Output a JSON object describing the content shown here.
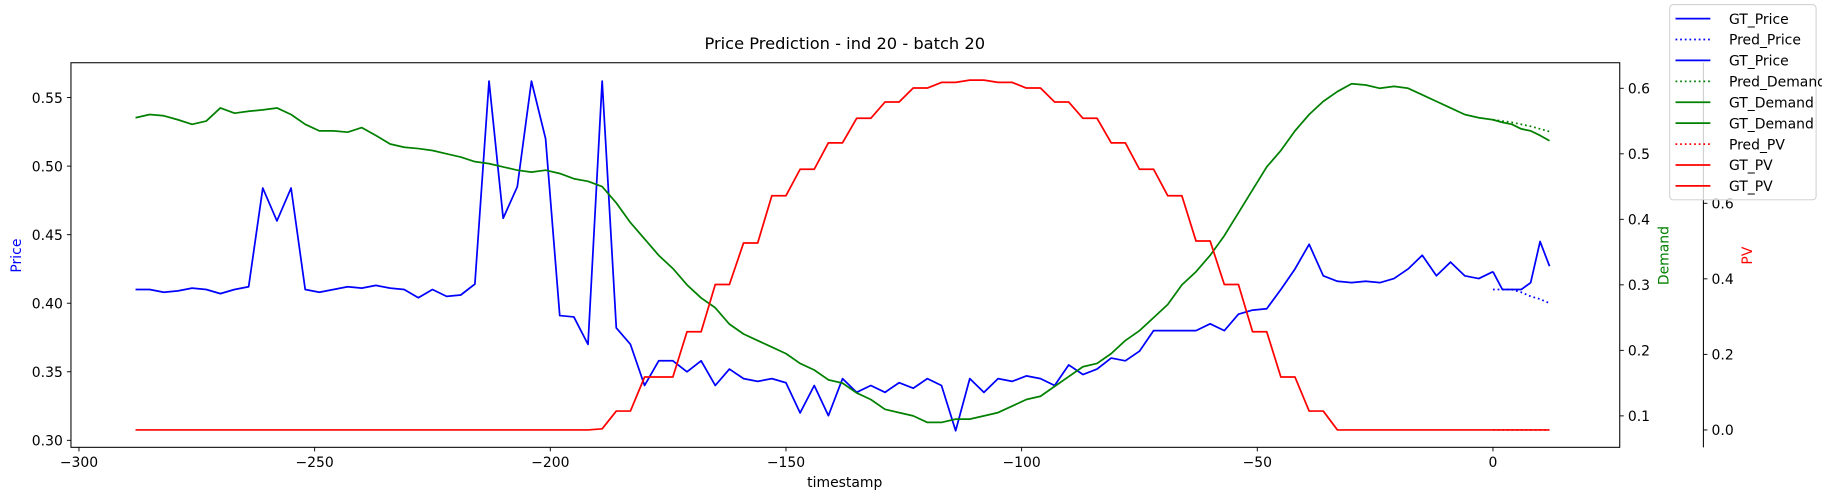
{
  "chart_data": {
    "type": "line",
    "title": "Price Prediction - ind 20 - batch 20",
    "xlabel": "timestamp",
    "ylabel": "Price",
    "y2label": "Demand",
    "y3label": "PV",
    "legend": "upper right",
    "xlim": [
      -301.7,
      26.9
    ],
    "xticks": [
      {
        "value": -300,
        "label": "−300"
      },
      {
        "value": -250,
        "label": "−250"
      },
      {
        "value": -200,
        "label": "−200"
      },
      {
        "value": -150,
        "label": "−150"
      },
      {
        "value": -100,
        "label": "−100"
      },
      {
        "value": -50,
        "label": "−50"
      },
      0
    ],
    "ylim": [
      0.2949,
      0.5754
    ],
    "yticks": [
      {
        "value": 0.3,
        "label": "0.30"
      },
      0.35,
      {
        "value": 0.4,
        "label": "0.40"
      },
      0.45,
      {
        "value": 0.5,
        "label": "0.50"
      },
      0.55
    ],
    "y2lim": [
      0.052,
      0.639
    ],
    "y2ticks": [
      0.1,
      0.2,
      0.3,
      0.4,
      0.5,
      0.6
    ],
    "y3lim": [
      -0.046,
      0.972
    ],
    "y3ticks": [
      {
        "value": 0,
        "label": "0.0"
      },
      0.2,
      0.4,
      0.6
    ],
    "x": [
      -288,
      -285,
      -282,
      -279,
      -276,
      -273,
      -270,
      -267,
      -264,
      -261,
      -258,
      -255,
      -252,
      -249,
      -246,
      -243,
      -240,
      -237,
      -234,
      -231,
      -228,
      -225,
      -222,
      -219,
      -216,
      -213,
      -210,
      -207,
      -204,
      -201,
      -198,
      -195,
      -192,
      -189,
      -186,
      -183,
      -180,
      -177,
      -174,
      -171,
      -168,
      -165,
      -162,
      -159,
      -156,
      -153,
      -150,
      -147,
      -144,
      -141,
      -138,
      -135,
      -132,
      -129,
      -126,
      -123,
      -120,
      -117,
      -114,
      -111,
      -108,
      -105,
      -102,
      -99,
      -96,
      -93,
      -90,
      -87,
      -84,
      -81,
      -78,
      -75,
      -72,
      -69,
      -66,
      -63,
      -60,
      -57,
      -54,
      -51,
      -48,
      -45,
      -42,
      -39,
      -36,
      -33,
      -30,
      -27,
      -24,
      -21,
      -18,
      -15,
      -12,
      -9,
      -6,
      -3,
      0
    ],
    "series": [
      {
        "name": "GT_Price",
        "color": "#0000ff",
        "linestyle": "solid",
        "axis": "y",
        "values": [
          0.41,
          0.41,
          0.408,
          0.409,
          0.411,
          0.41,
          0.407,
          0.41,
          0.412,
          0.484,
          0.46,
          0.484,
          0.41,
          0.408,
          0.41,
          0.412,
          0.411,
          0.413,
          0.411,
          0.41,
          0.404,
          0.41,
          0.405,
          0.406,
          0.414,
          0.562,
          0.462,
          0.485,
          0.562,
          0.52,
          0.391,
          0.39,
          0.37,
          0.562,
          0.382,
          0.37,
          0.34,
          0.358,
          0.358,
          0.35,
          0.358,
          0.34,
          0.352,
          0.345,
          0.343,
          0.345,
          0.342,
          0.32,
          0.34,
          0.318,
          0.345,
          0.335,
          0.34,
          0.335,
          0.342,
          0.338,
          0.345,
          0.34,
          0.307,
          0.345,
          0.335,
          0.345,
          0.343,
          0.347,
          0.345,
          0.34,
          0.355,
          0.348,
          0.352,
          0.36,
          0.358,
          0.365,
          0.38,
          0.38,
          0.38,
          0.38,
          0.385,
          0.38,
          0.392,
          0.395,
          0.396,
          0.41,
          0.425,
          0.443,
          0.42,
          0.416,
          0.415,
          0.416,
          0.415,
          0.418,
          0.425,
          0.435,
          0.42,
          0.43,
          0.42,
          0.418,
          0.423
        ]
      },
      {
        "name": "Pred_Price",
        "color": "#0000ff",
        "linestyle": "dotted",
        "axis": "y",
        "x": [
          0,
          2,
          4,
          6,
          8,
          10,
          12
        ],
        "values": [
          0.41,
          0.41,
          0.41,
          0.408,
          0.405,
          0.403,
          0.4
        ]
      },
      {
        "name": "GT_Price",
        "color": "#0000ff",
        "linestyle": "solid",
        "axis": "y",
        "x": [
          0,
          2,
          4,
          6,
          8,
          10,
          12
        ],
        "values": [
          0.423,
          0.41,
          0.41,
          0.41,
          0.415,
          0.445,
          0.427
        ]
      },
      {
        "name": "Pred_Demand",
        "color": "#008000",
        "linestyle": "dotted",
        "axis": "y2",
        "x": [
          0,
          2,
          4,
          6,
          8,
          10,
          12
        ],
        "values": [
          0.552,
          0.55,
          0.548,
          0.545,
          0.542,
          0.538,
          0.534
        ]
      },
      {
        "name": "GT_Demand",
        "color": "#008000",
        "linestyle": "solid",
        "axis": "y2",
        "values": [
          0.555,
          0.56,
          0.558,
          0.552,
          0.545,
          0.55,
          0.57,
          0.562,
          0.565,
          0.567,
          0.57,
          0.56,
          0.545,
          0.535,
          0.535,
          0.533,
          0.54,
          0.528,
          0.515,
          0.51,
          0.508,
          0.505,
          0.5,
          0.495,
          0.488,
          0.485,
          0.48,
          0.475,
          0.472,
          0.475,
          0.47,
          0.462,
          0.458,
          0.45,
          0.425,
          0.395,
          0.37,
          0.345,
          0.325,
          0.3,
          0.28,
          0.265,
          0.24,
          0.225,
          0.215,
          0.205,
          0.195,
          0.18,
          0.17,
          0.155,
          0.15,
          0.135,
          0.125,
          0.11,
          0.105,
          0.1,
          0.09,
          0.09,
          0.095,
          0.095,
          0.1,
          0.105,
          0.115,
          0.125,
          0.13,
          0.145,
          0.16,
          0.175,
          0.18,
          0.195,
          0.215,
          0.23,
          0.25,
          0.27,
          0.3,
          0.32,
          0.345,
          0.375,
          0.41,
          0.445,
          0.48,
          0.505,
          0.535,
          0.56,
          0.58,
          0.595,
          0.607,
          0.605,
          0.6,
          0.603,
          0.6,
          0.59,
          0.58,
          0.57,
          0.56,
          0.555,
          0.552
        ]
      },
      {
        "name": "GT_Demand",
        "color": "#008000",
        "linestyle": "solid",
        "axis": "y2",
        "x": [
          0,
          2,
          4,
          6,
          8,
          10,
          12
        ],
        "values": [
          0.552,
          0.548,
          0.545,
          0.538,
          0.535,
          0.528,
          0.52
        ]
      },
      {
        "name": "Pred_PV",
        "color": "#ff0000",
        "linestyle": "dotted",
        "axis": "y3",
        "x": [
          0,
          2,
          4,
          6,
          8,
          10,
          12
        ],
        "values": [
          0,
          0,
          0,
          0,
          0,
          0,
          0
        ]
      },
      {
        "name": "GT_PV",
        "color": "#ff0000",
        "linestyle": "solid",
        "axis": "y3",
        "values": [
          0,
          0,
          0,
          0,
          0,
          0,
          0,
          0,
          0,
          0,
          0,
          0,
          0,
          0,
          0,
          0,
          0,
          0,
          0,
          0,
          0,
          0,
          0,
          0,
          0,
          0,
          0,
          0,
          0,
          0,
          0,
          0,
          0,
          0.003,
          0.05,
          0.05,
          0.14,
          0.14,
          0.14,
          0.26,
          0.26,
          0.385,
          0.385,
          0.495,
          0.495,
          0.62,
          0.62,
          0.69,
          0.69,
          0.76,
          0.76,
          0.825,
          0.825,
          0.868,
          0.868,
          0.905,
          0.905,
          0.92,
          0.92,
          0.926,
          0.926,
          0.92,
          0.92,
          0.905,
          0.905,
          0.868,
          0.868,
          0.825,
          0.825,
          0.76,
          0.76,
          0.69,
          0.69,
          0.62,
          0.62,
          0.5,
          0.5,
          0.385,
          0.385,
          0.26,
          0.26,
          0.14,
          0.14,
          0.05,
          0.05,
          0,
          0,
          0,
          0,
          0,
          0,
          0,
          0,
          0,
          0,
          0,
          0
        ]
      },
      {
        "name": "GT_PV",
        "color": "#ff0000",
        "linestyle": "solid",
        "axis": "y3",
        "x": [
          0,
          2,
          4,
          6,
          8,
          10,
          12
        ],
        "values": [
          0,
          0,
          0,
          0,
          0,
          0,
          0
        ]
      }
    ]
  }
}
